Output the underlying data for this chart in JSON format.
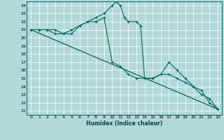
{
  "xlabel": "Humidex (Indice chaleur)",
  "bg_color": "#b2d8d8",
  "grid_color": "#ffffff",
  "line_color": "#006666",
  "xlim": [
    -0.5,
    23.5
  ],
  "ylim": [
    10.5,
    24.5
  ],
  "xticks": [
    0,
    1,
    2,
    3,
    4,
    5,
    6,
    7,
    8,
    9,
    10,
    11,
    12,
    13,
    14,
    15,
    16,
    17,
    18,
    19,
    20,
    21,
    22,
    23
  ],
  "yticks": [
    11,
    12,
    13,
    14,
    15,
    16,
    17,
    18,
    19,
    20,
    21,
    22,
    23,
    24
  ],
  "series1_x": [
    0,
    1,
    2,
    3,
    4,
    5,
    6,
    7,
    8,
    9,
    10,
    10.5,
    11,
    11.5,
    12,
    13,
    13.5,
    14,
    15,
    16,
    17,
    18,
    19,
    20,
    21,
    22,
    23
  ],
  "series1_y": [
    21,
    21,
    21,
    21,
    20.5,
    21,
    21.5,
    22,
    22.5,
    23,
    24,
    24.5,
    24,
    22.5,
    22,
    22,
    21.5,
    15,
    15,
    15.5,
    17,
    16,
    15,
    14,
    13,
    12.5,
    11.2
  ],
  "series2_x": [
    0,
    1,
    2,
    3,
    4,
    5,
    6,
    7,
    8,
    9,
    10,
    11,
    12,
    13,
    14,
    15,
    16,
    17,
    18,
    19,
    20,
    21,
    22,
    23
  ],
  "series2_y": [
    21,
    21,
    21,
    20.5,
    20.5,
    20.5,
    21.5,
    22,
    22,
    22.5,
    17,
    16.5,
    15.5,
    15,
    15,
    15,
    15.5,
    15.5,
    15,
    14.5,
    14,
    13.5,
    12,
    11.2
  ],
  "series3_x": [
    0,
    23
  ],
  "series3_y": [
    21,
    11.2
  ]
}
